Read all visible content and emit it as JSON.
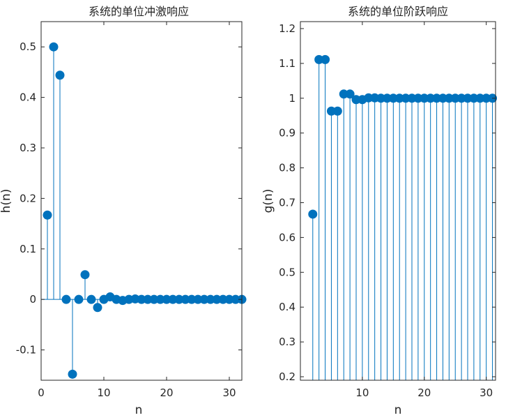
{
  "chart_data": [
    {
      "type": "stem",
      "title": "系统的单位冲激响应",
      "xlabel": "n",
      "ylabel": "h(n)",
      "xlim": [
        0,
        32
      ],
      "ylim": [
        -0.16,
        0.55
      ],
      "xticks": [
        0,
        10,
        20,
        30
      ],
      "xtick_labels": [
        "0",
        "10",
        "20",
        "30"
      ],
      "yticks": [
        -0.1,
        0,
        0.1,
        0.2,
        0.3,
        0.4,
        0.5
      ],
      "ytick_labels": [
        "-0.1",
        "0",
        "0.1",
        "0.2",
        "0.3",
        "0.4",
        "0.5"
      ],
      "baseline": 0,
      "color": "#0072BD",
      "x": [
        1,
        2,
        3,
        4,
        5,
        6,
        7,
        8,
        9,
        10,
        11,
        12,
        13,
        14,
        15,
        16,
        17,
        18,
        19,
        20,
        21,
        22,
        23,
        24,
        25,
        26,
        27,
        28,
        29,
        30,
        31,
        32
      ],
      "values": [
        0.167,
        0.5,
        0.444,
        0,
        -0.148,
        0,
        0.049,
        0,
        -0.016,
        0,
        0.005,
        0,
        -0.002,
        0,
        0.001,
        0,
        0,
        0,
        0,
        0,
        0,
        0,
        0,
        0,
        0,
        0,
        0,
        0,
        0,
        0,
        0,
        0
      ]
    },
    {
      "type": "stem",
      "title": "系统的单位阶跃响应",
      "xlabel": "n",
      "ylabel": "g(n)",
      "xlim": [
        0,
        31.5
      ],
      "ylim": [
        0.19,
        1.22
      ],
      "xticks": [
        10,
        20,
        30
      ],
      "xtick_labels": [
        "10",
        "20",
        "30"
      ],
      "yticks": [
        0.2,
        0.3,
        0.4,
        0.5,
        0.6,
        0.7,
        0.8,
        0.9,
        1,
        1.1,
        1.2
      ],
      "ytick_labels": [
        "0.2",
        "0.3",
        "0.4",
        "0.5",
        "0.6",
        "0.7",
        "0.8",
        "0.9",
        "1",
        "1.1",
        "1.2"
      ],
      "color": "#0072BD",
      "x": [
        2,
        3,
        4,
        5,
        6,
        7,
        8,
        9,
        10,
        11,
        12,
        13,
        14,
        15,
        16,
        17,
        18,
        19,
        20,
        21,
        22,
        23,
        24,
        25,
        26,
        27,
        28,
        29,
        30,
        31
      ],
      "values": [
        0.667,
        1.111,
        1.111,
        0.963,
        0.963,
        1.012,
        1.012,
        0.996,
        0.996,
        1.001,
        1.001,
        1,
        1,
        1,
        1,
        1,
        1,
        1,
        1,
        1,
        1,
        1,
        1,
        1,
        1,
        1,
        1,
        1,
        1,
        1
      ]
    }
  ]
}
